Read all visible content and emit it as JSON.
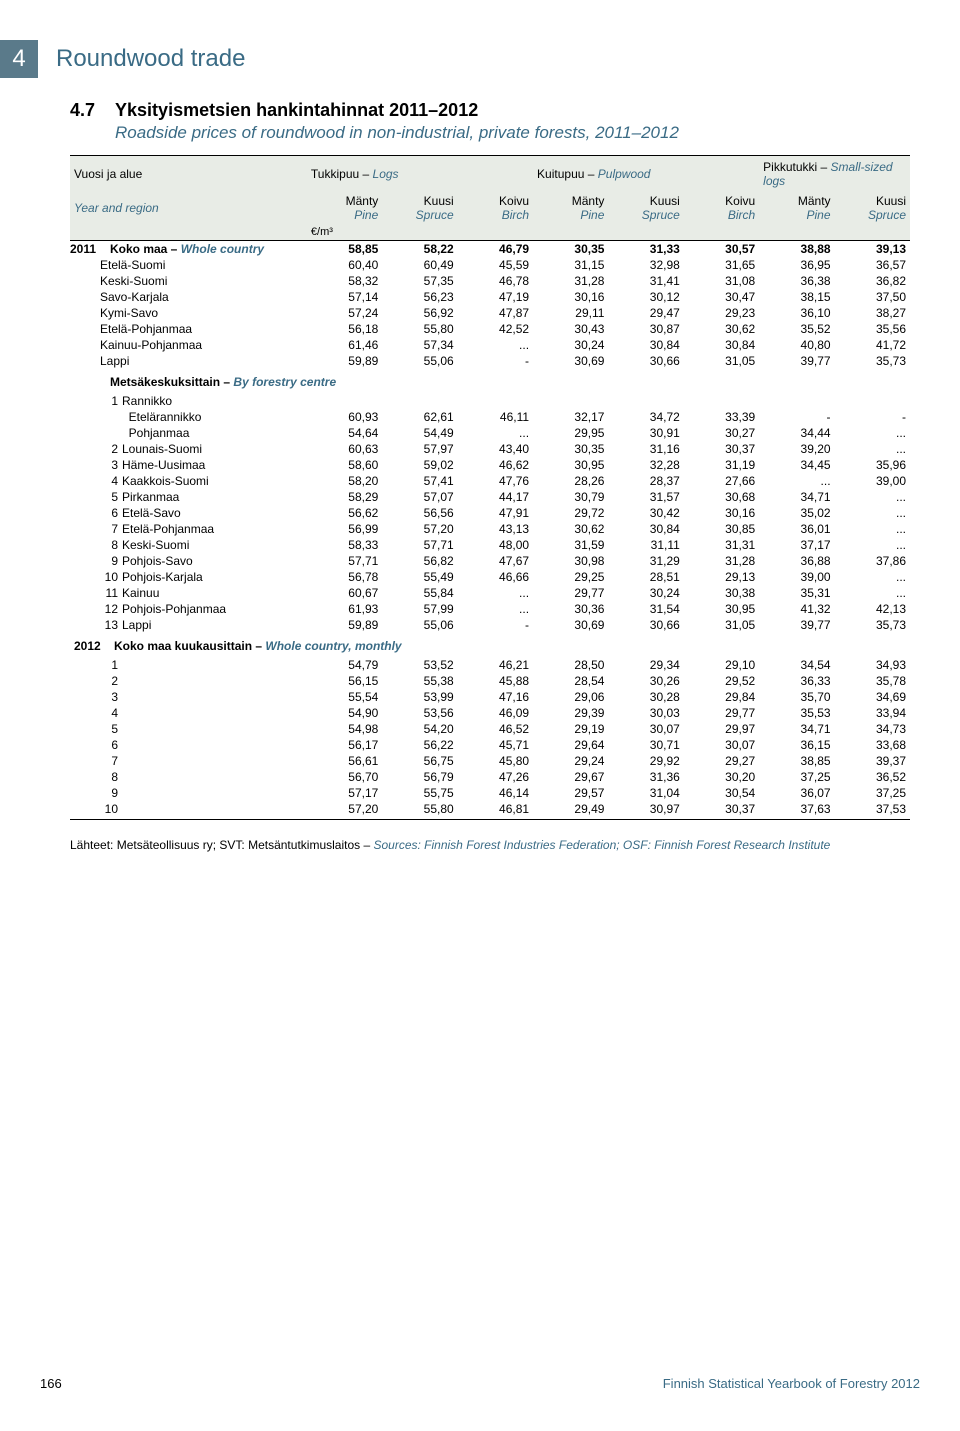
{
  "chapter": {
    "number": "4",
    "title": "Roundwood trade"
  },
  "table": {
    "number": "4.7",
    "title_fi": "Yksityismetsien hankintahinnat 2011–2012",
    "title_en": "Roadside prices of roundwood in non-industrial, private forests, 2011–2012"
  },
  "header": {
    "row_label_fi": "Vuosi ja alue",
    "row_label_en": "Year and region",
    "groups": [
      {
        "fi": "Tukkipuu",
        "en": "Logs"
      },
      {
        "fi": "Kuitupuu",
        "en": "Pulpwood"
      },
      {
        "fi": "Pikkutukki",
        "en": "Small-sized logs"
      }
    ],
    "cols": [
      {
        "fi": "Mänty",
        "en": "Pine"
      },
      {
        "fi": "Kuusi",
        "en": "Spruce"
      },
      {
        "fi": "Koivu",
        "en": "Birch"
      },
      {
        "fi": "Mänty",
        "en": "Pine"
      },
      {
        "fi": "Kuusi",
        "en": "Spruce"
      },
      {
        "fi": "Koivu",
        "en": "Birch"
      },
      {
        "fi": "Mänty",
        "en": "Pine"
      },
      {
        "fi": "Kuusi",
        "en": "Spruce"
      }
    ],
    "unit": "€/m³"
  },
  "sections": {
    "s2011": {
      "year": "2011",
      "whole_title_fi": "Koko maa",
      "whole_title_en": "Whole country",
      "whole_values": [
        "58,85",
        "58,22",
        "46,79",
        "30,35",
        "31,33",
        "30,57",
        "38,88",
        "39,13"
      ],
      "regions": [
        {
          "label": "Etelä-Suomi",
          "v": [
            "60,40",
            "60,49",
            "45,59",
            "31,15",
            "32,98",
            "31,65",
            "36,95",
            "36,57"
          ]
        },
        {
          "label": "Keski-Suomi",
          "v": [
            "58,32",
            "57,35",
            "46,78",
            "31,28",
            "31,41",
            "31,08",
            "36,38",
            "36,82"
          ]
        },
        {
          "label": "Savo-Karjala",
          "v": [
            "57,14",
            "56,23",
            "47,19",
            "30,16",
            "30,12",
            "30,47",
            "38,15",
            "37,50"
          ]
        },
        {
          "label": "Kymi-Savo",
          "v": [
            "57,24",
            "56,92",
            "47,87",
            "29,11",
            "29,47",
            "29,23",
            "36,10",
            "38,27"
          ]
        },
        {
          "label": "Etelä-Pohjanmaa",
          "v": [
            "56,18",
            "55,80",
            "42,52",
            "30,43",
            "30,87",
            "30,62",
            "35,52",
            "35,56"
          ]
        },
        {
          "label": "Kainuu-Pohjanmaa",
          "v": [
            "61,46",
            "57,34",
            "...",
            "30,24",
            "30,84",
            "30,84",
            "40,80",
            "41,72"
          ]
        },
        {
          "label": "Lappi",
          "v": [
            "59,89",
            "55,06",
            "-",
            "30,69",
            "30,66",
            "31,05",
            "39,77",
            "35,73"
          ]
        }
      ],
      "byfc_title_fi": "Metsäkeskuksittain",
      "byfc_title_en": "By forestry centre",
      "byfc": [
        {
          "num": "1",
          "label": "Rannikko",
          "v": [
            "",
            "",
            "",
            "",
            "",
            "",
            "",
            ""
          ]
        },
        {
          "num": "",
          "label": "  Etelärannikko",
          "v": [
            "60,93",
            "62,61",
            "46,11",
            "32,17",
            "34,72",
            "33,39",
            "-",
            "-"
          ]
        },
        {
          "num": "",
          "label": "  Pohjanmaa",
          "v": [
            "54,64",
            "54,49",
            "...",
            "29,95",
            "30,91",
            "30,27",
            "34,44",
            "..."
          ]
        },
        {
          "num": "2",
          "label": "Lounais-Suomi",
          "v": [
            "60,63",
            "57,97",
            "43,40",
            "30,35",
            "31,16",
            "30,37",
            "39,20",
            "..."
          ]
        },
        {
          "num": "3",
          "label": "Häme-Uusimaa",
          "v": [
            "58,60",
            "59,02",
            "46,62",
            "30,95",
            "32,28",
            "31,19",
            "34,45",
            "35,96"
          ]
        },
        {
          "num": "4",
          "label": "Kaakkois-Suomi",
          "v": [
            "58,20",
            "57,41",
            "47,76",
            "28,26",
            "28,37",
            "27,66",
            "...",
            "39,00"
          ]
        },
        {
          "num": "5",
          "label": "Pirkanmaa",
          "v": [
            "58,29",
            "57,07",
            "44,17",
            "30,79",
            "31,57",
            "30,68",
            "34,71",
            "..."
          ]
        },
        {
          "num": "6",
          "label": "Etelä-Savo",
          "v": [
            "56,62",
            "56,56",
            "47,91",
            "29,72",
            "30,42",
            "30,16",
            "35,02",
            "..."
          ]
        },
        {
          "num": "7",
          "label": "Etelä-Pohjanmaa",
          "v": [
            "56,99",
            "57,20",
            "43,13",
            "30,62",
            "30,84",
            "30,85",
            "36,01",
            "..."
          ]
        },
        {
          "num": "8",
          "label": "Keski-Suomi",
          "v": [
            "58,33",
            "57,71",
            "48,00",
            "31,59",
            "31,11",
            "31,31",
            "37,17",
            "..."
          ]
        },
        {
          "num": "9",
          "label": "Pohjois-Savo",
          "v": [
            "57,71",
            "56,82",
            "47,67",
            "30,98",
            "31,29",
            "31,28",
            "36,88",
            "37,86"
          ]
        },
        {
          "num": "10",
          "label": "Pohjois-Karjala",
          "v": [
            "56,78",
            "55,49",
            "46,66",
            "29,25",
            "28,51",
            "29,13",
            "39,00",
            "..."
          ]
        },
        {
          "num": "11",
          "label": "Kainuu",
          "v": [
            "60,67",
            "55,84",
            "...",
            "29,77",
            "30,24",
            "30,38",
            "35,31",
            "..."
          ]
        },
        {
          "num": "12",
          "label": "Pohjois-Pohjanmaa",
          "v": [
            "61,93",
            "57,99",
            "...",
            "30,36",
            "31,54",
            "30,95",
            "41,32",
            "42,13"
          ]
        },
        {
          "num": "13",
          "label": "Lappi",
          "v": [
            "59,89",
            "55,06",
            "-",
            "30,69",
            "30,66",
            "31,05",
            "39,77",
            "35,73"
          ]
        }
      ]
    },
    "s2012": {
      "year": "2012",
      "monthly_title_fi": "Koko maa kuukausittain",
      "monthly_title_en": "Whole country, monthly",
      "rows": [
        {
          "num": "1",
          "v": [
            "54,79",
            "53,52",
            "46,21",
            "28,50",
            "29,34",
            "29,10",
            "34,54",
            "34,93"
          ]
        },
        {
          "num": "2",
          "v": [
            "56,15",
            "55,38",
            "45,88",
            "28,54",
            "30,26",
            "29,52",
            "36,33",
            "35,78"
          ]
        },
        {
          "num": "3",
          "v": [
            "55,54",
            "53,99",
            "47,16",
            "29,06",
            "30,28",
            "29,84",
            "35,70",
            "34,69"
          ]
        },
        {
          "num": "4",
          "v": [
            "54,90",
            "53,56",
            "46,09",
            "29,39",
            "30,03",
            "29,77",
            "35,53",
            "33,94"
          ]
        },
        {
          "num": "5",
          "v": [
            "54,98",
            "54,20",
            "46,52",
            "29,19",
            "30,07",
            "29,97",
            "34,71",
            "34,73"
          ]
        },
        {
          "num": "6",
          "v": [
            "56,17",
            "56,22",
            "45,71",
            "29,64",
            "30,71",
            "30,07",
            "36,15",
            "33,68"
          ]
        },
        {
          "num": "7",
          "v": [
            "56,61",
            "56,75",
            "45,80",
            "29,24",
            "29,92",
            "29,27",
            "38,85",
            "39,37"
          ]
        },
        {
          "num": "8",
          "v": [
            "56,70",
            "56,79",
            "47,26",
            "29,67",
            "31,36",
            "30,20",
            "37,25",
            "36,52"
          ]
        },
        {
          "num": "9",
          "v": [
            "57,17",
            "55,75",
            "46,14",
            "29,57",
            "31,04",
            "30,54",
            "36,07",
            "37,25"
          ]
        },
        {
          "num": "10",
          "v": [
            "57,20",
            "55,80",
            "46,81",
            "29,49",
            "30,97",
            "30,37",
            "37,63",
            "37,53"
          ]
        }
      ]
    }
  },
  "sources": {
    "fi": "Lähteet: Metsäteollisuus ry; SVT: Metsäntutkimuslaitos",
    "en": "Sources: Finnish Forest Industries Federation; OSF: Finnish Forest Research Institute"
  },
  "footer": {
    "page": "166",
    "pub": "Finnish Statistical Yearbook of Forestry 2012"
  }
}
